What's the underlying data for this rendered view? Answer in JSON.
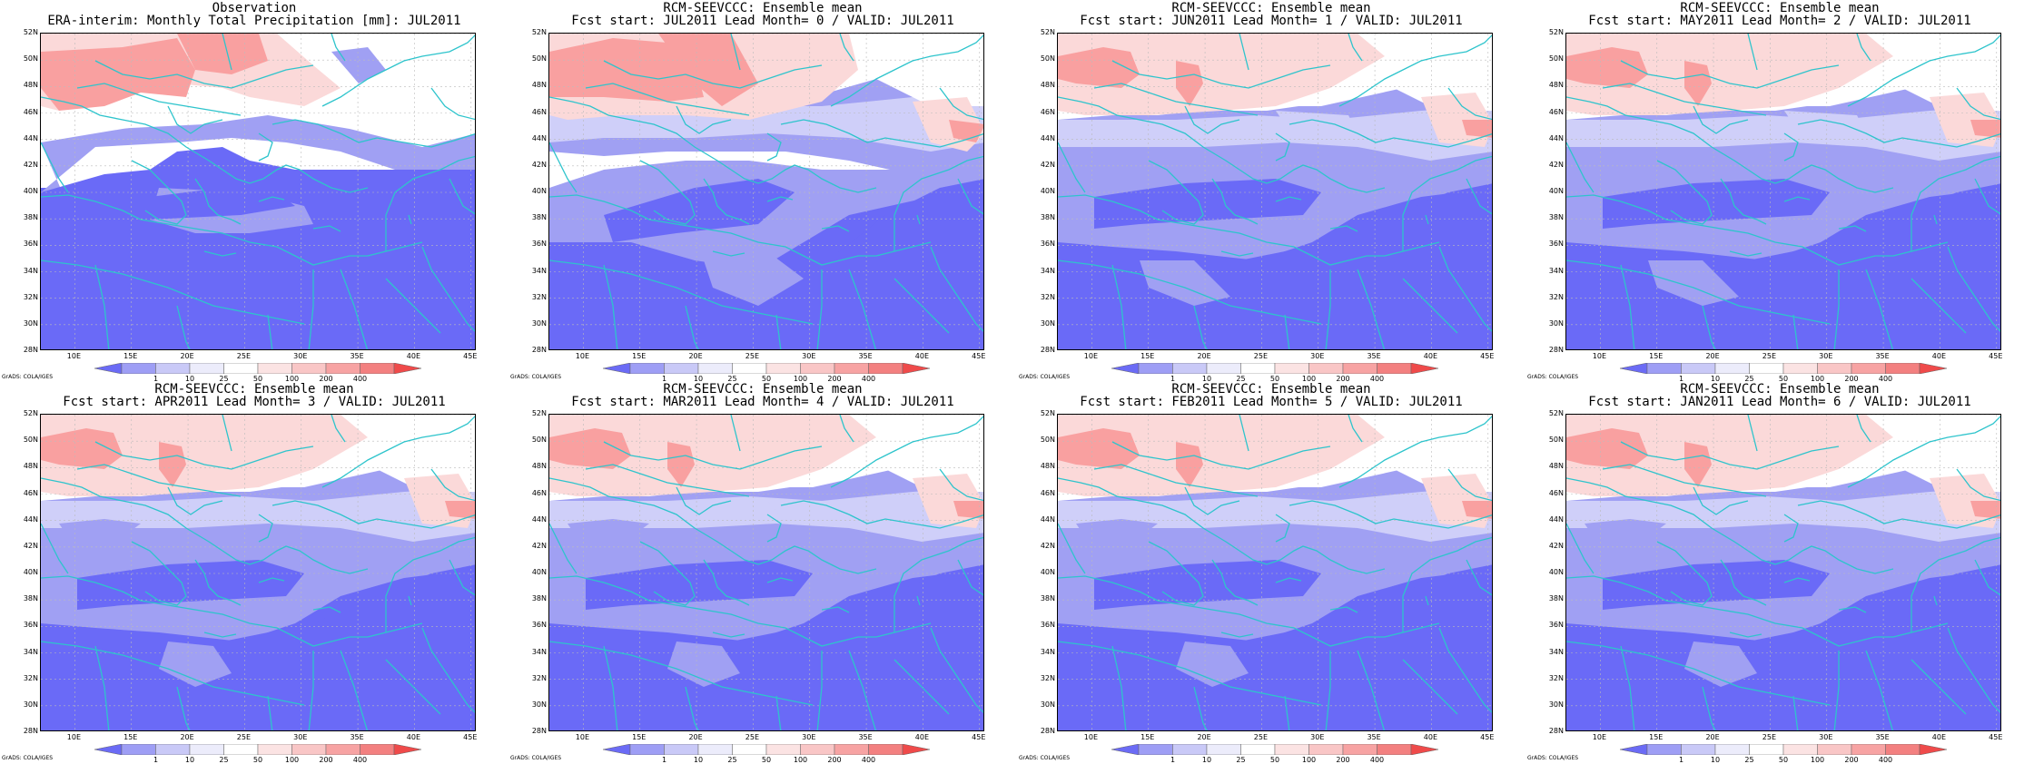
{
  "panels": [
    {
      "title1": "Observation",
      "title2": "ERA-interim:  Monthly Total Precipitation [mm]: JUL2011",
      "variant": 0
    },
    {
      "title1": "RCM-SEEVCCC: Ensemble mean",
      "title2": "Fcst start: JUL2011  Lead Month= 0 / VALID: JUL2011",
      "variant": 1
    },
    {
      "title1": "RCM-SEEVCCC: Ensemble mean",
      "title2": "Fcst start: JUN2011  Lead Month= 1 / VALID: JUL2011",
      "variant": 2
    },
    {
      "title1": "RCM-SEEVCCC: Ensemble mean",
      "title2": "Fcst start: MAY2011  Lead Month= 2 / VALID: JUL2011",
      "variant": 2
    },
    {
      "title1": "RCM-SEEVCCC: Ensemble mean",
      "title2": "Fcst start: APR2011  Lead Month= 3 / VALID: JUL2011",
      "variant": 3
    },
    {
      "title1": "RCM-SEEVCCC: Ensemble mean",
      "title2": "Fcst start: MAR2011  Lead Month= 4 / VALID: JUL2011",
      "variant": 3
    },
    {
      "title1": "RCM-SEEVCCC: Ensemble mean",
      "title2": "Fcst start: FEB2011  Lead Month= 5 / VALID: JUL2011",
      "variant": 3
    },
    {
      "title1": "RCM-SEEVCCC: Ensemble mean",
      "title2": "Fcst start: JAN2011  Lead Month= 6 / VALID: JUL2011",
      "variant": 3
    }
  ],
  "lat_labels": [
    "52N",
    "50N",
    "48N",
    "46N",
    "44N",
    "42N",
    "40N",
    "38N",
    "36N",
    "34N",
    "32N",
    "30N",
    "28N"
  ],
  "lon_labels": [
    "10E",
    "15E",
    "20E",
    "25E",
    "30E",
    "35E",
    "40E",
    "45E"
  ],
  "lon_values": [
    10,
    15,
    20,
    25,
    30,
    35,
    40,
    45
  ],
  "lon_range": [
    7,
    45.5
  ],
  "lat_range": [
    28,
    52
  ],
  "colorbar_labels": [
    "1",
    "10",
    "25",
    "50",
    "100",
    "200",
    "400"
  ],
  "colorbar_colors": [
    "#6b6bf5",
    "#9e9ef5",
    "#c9c9f7",
    "#ececfb",
    "#ffffff",
    "#fbe3e3",
    "#f9c6c6",
    "#f7a3a3",
    "#f38080",
    "#ef4a4a"
  ],
  "credit": "GrADS: COLA/IGES",
  "colors": {
    "very_low": "#6a6af7",
    "low": "#a0a0f3",
    "mid_low": "#cfcff9",
    "neutral": "#ffffff",
    "mid_high": "#fbd9d9",
    "high": "#f9a0a0",
    "coast": "#2ec4cc"
  }
}
